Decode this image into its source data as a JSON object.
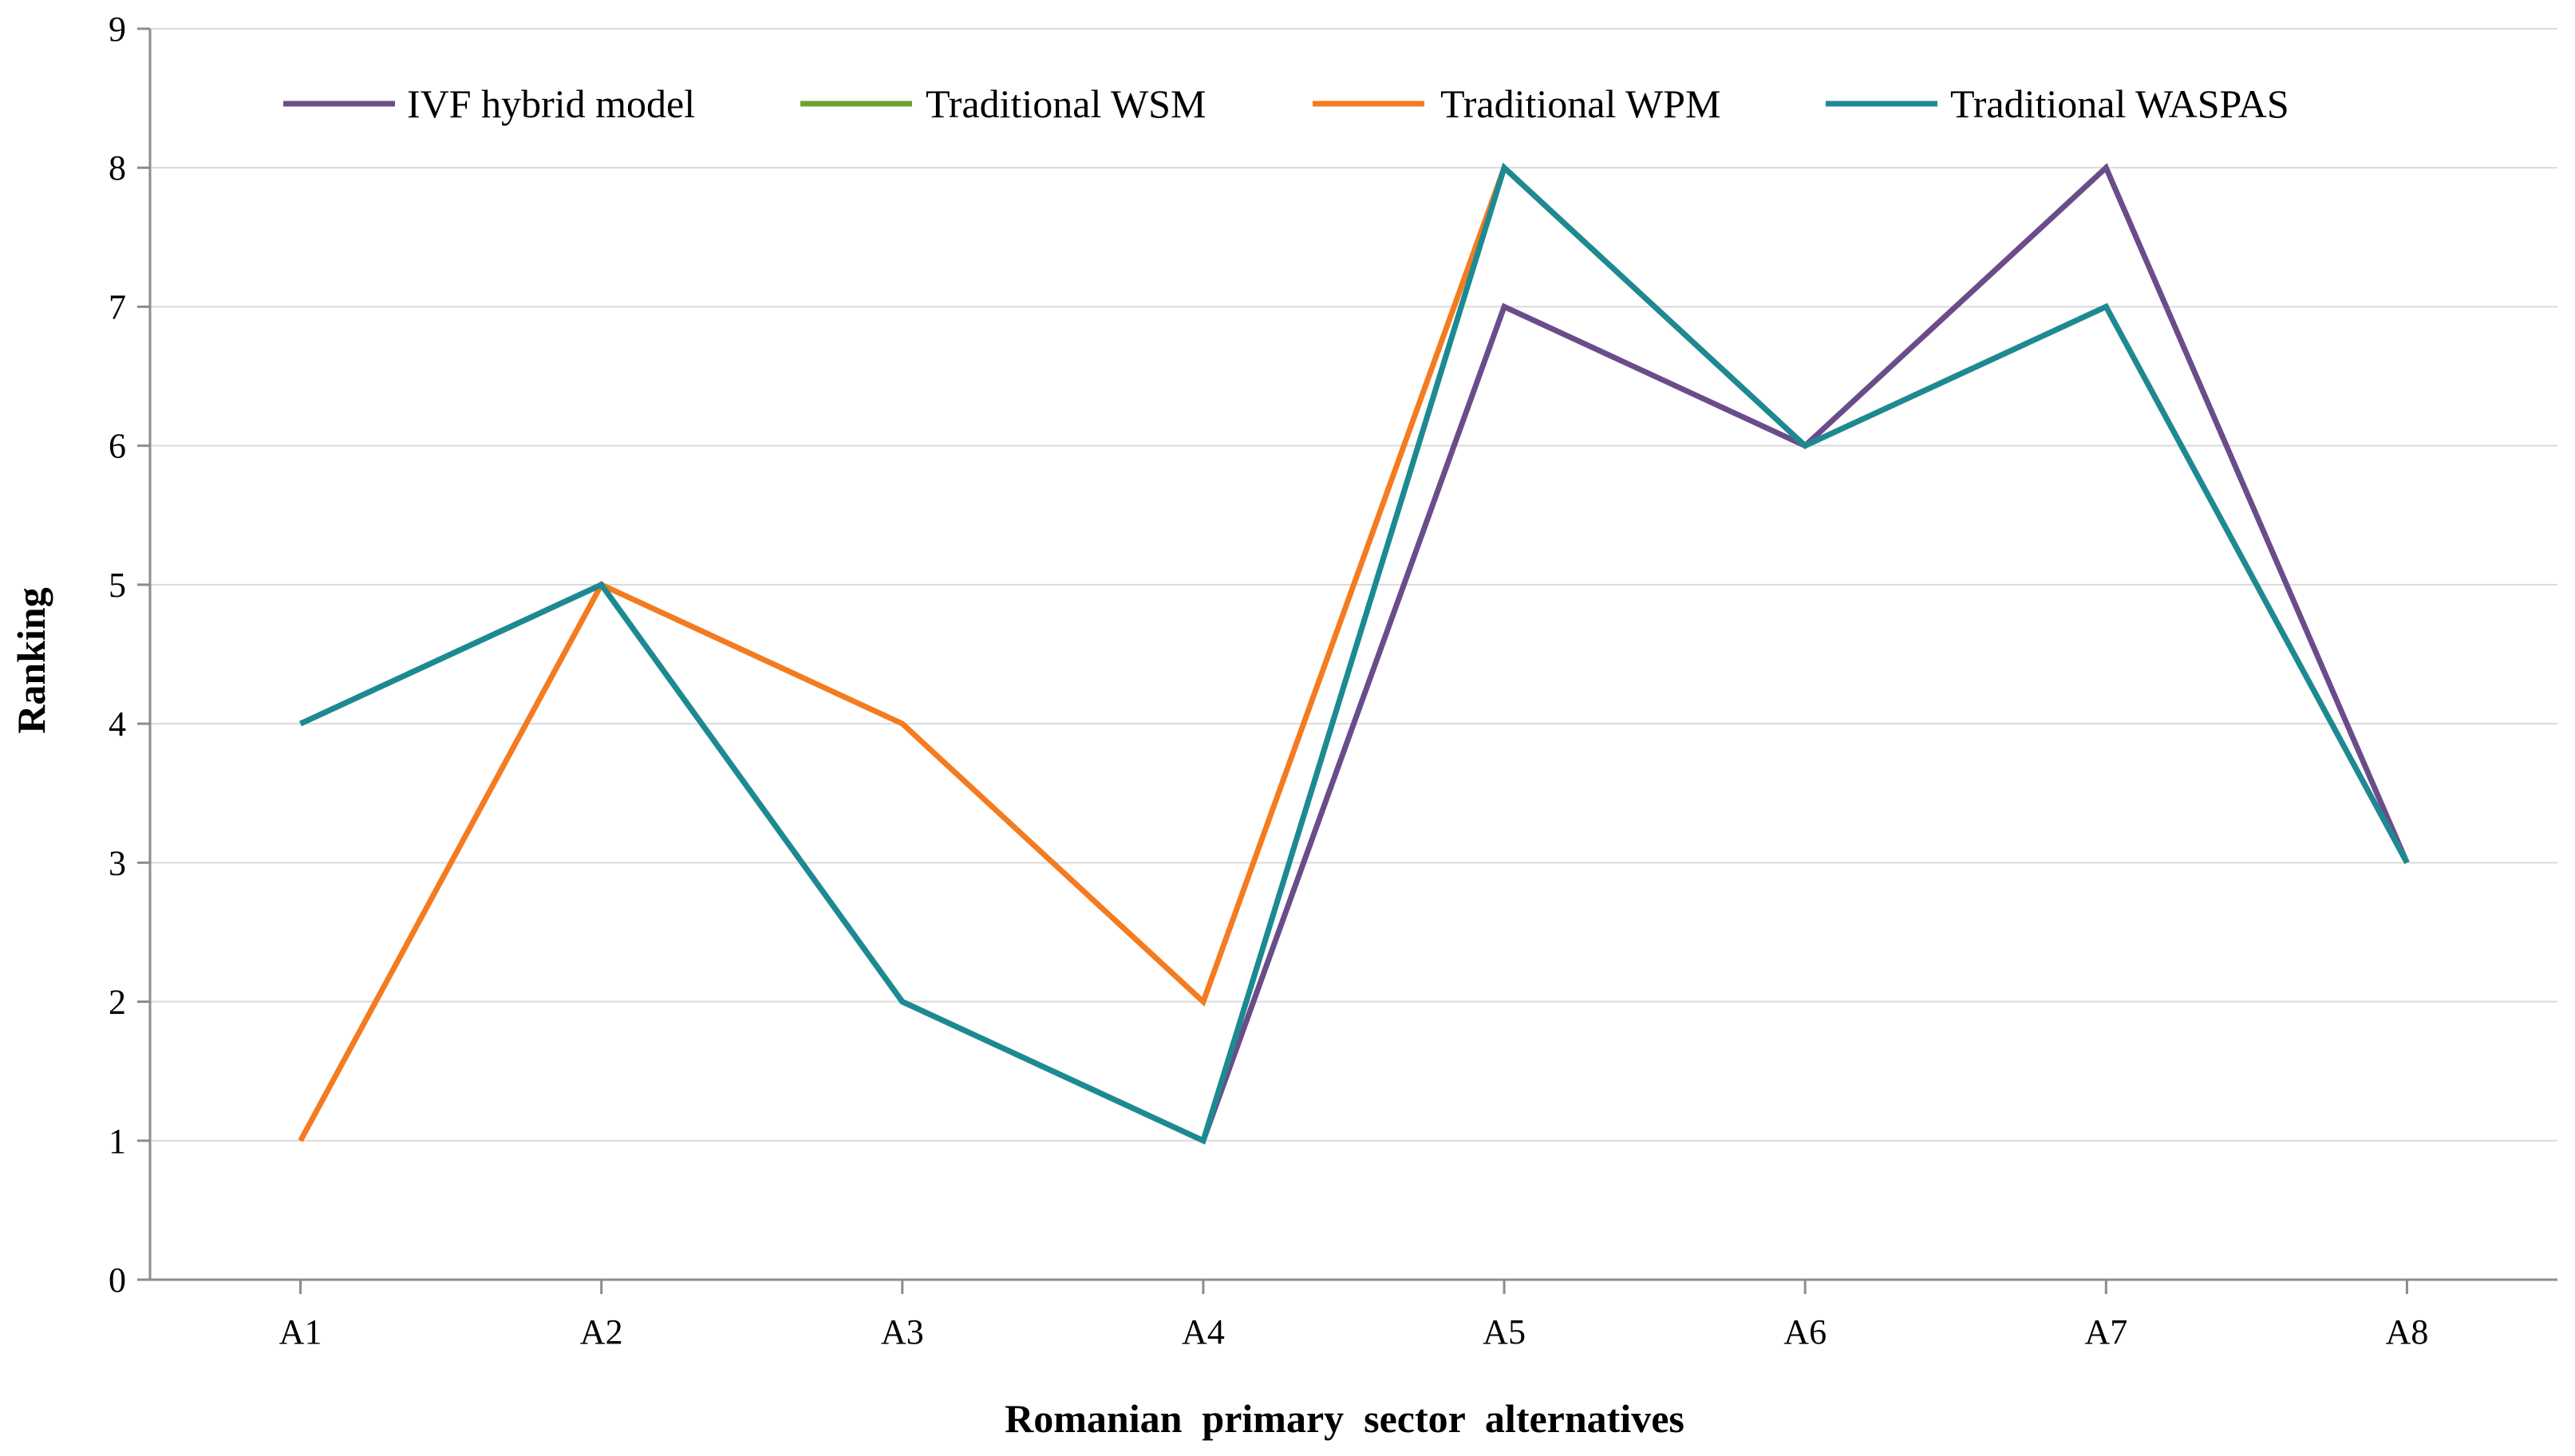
{
  "chart_data": {
    "type": "line",
    "title": "",
    "xlabel": "Romanian  primary  sector  alternatives",
    "ylabel": "Ranking",
    "categories": [
      "A1",
      "A2",
      "A3",
      "A4",
      "A5",
      "A6",
      "A7",
      "A8"
    ],
    "ylim": [
      0,
      9
    ],
    "yticks": [
      "0",
      "1",
      "2",
      "3",
      "4",
      "5",
      "6",
      "7",
      "8",
      "9"
    ],
    "grid": true,
    "legend_position": "top",
    "series": [
      {
        "name": "IVF hybrid model",
        "color": "#6b4c8a",
        "values": [
          4,
          5,
          2,
          1,
          7,
          6,
          8,
          3
        ]
      },
      {
        "name": "Traditional WSM",
        "color": "#6aa42f",
        "values": [
          4,
          5,
          2,
          1,
          8,
          6,
          7,
          3
        ]
      },
      {
        "name": "Traditional WPM",
        "color": "#f47b20",
        "values": [
          1,
          5,
          4,
          2,
          8,
          6,
          7,
          3
        ]
      },
      {
        "name": "Traditional WASPAS",
        "color": "#1b8a94",
        "values": [
          4,
          5,
          2,
          1,
          8,
          6,
          7,
          3
        ]
      }
    ]
  }
}
